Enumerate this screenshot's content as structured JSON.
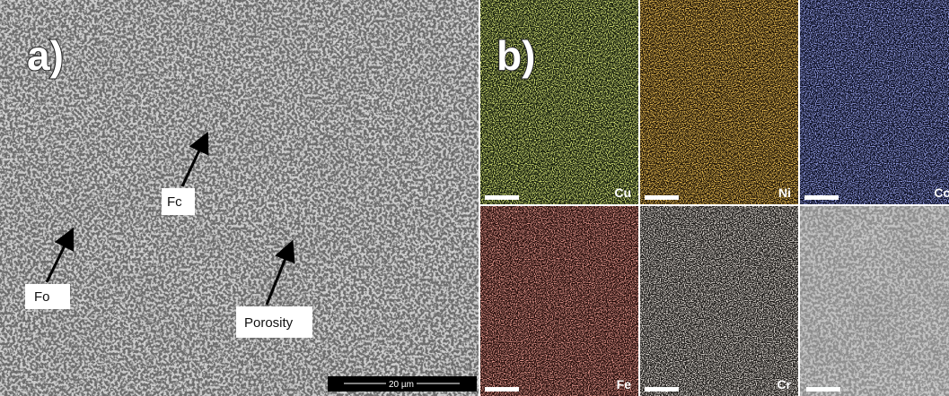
{
  "panel_a": {
    "label": "a)",
    "annotations": [
      "Fc",
      "Fo",
      "Porosity"
    ],
    "scale_bar": "20 µm"
  },
  "panel_b": {
    "label": "b)",
    "maps": [
      "Cu",
      "Ni",
      "Co",
      "Fe",
      "Cr"
    ]
  }
}
